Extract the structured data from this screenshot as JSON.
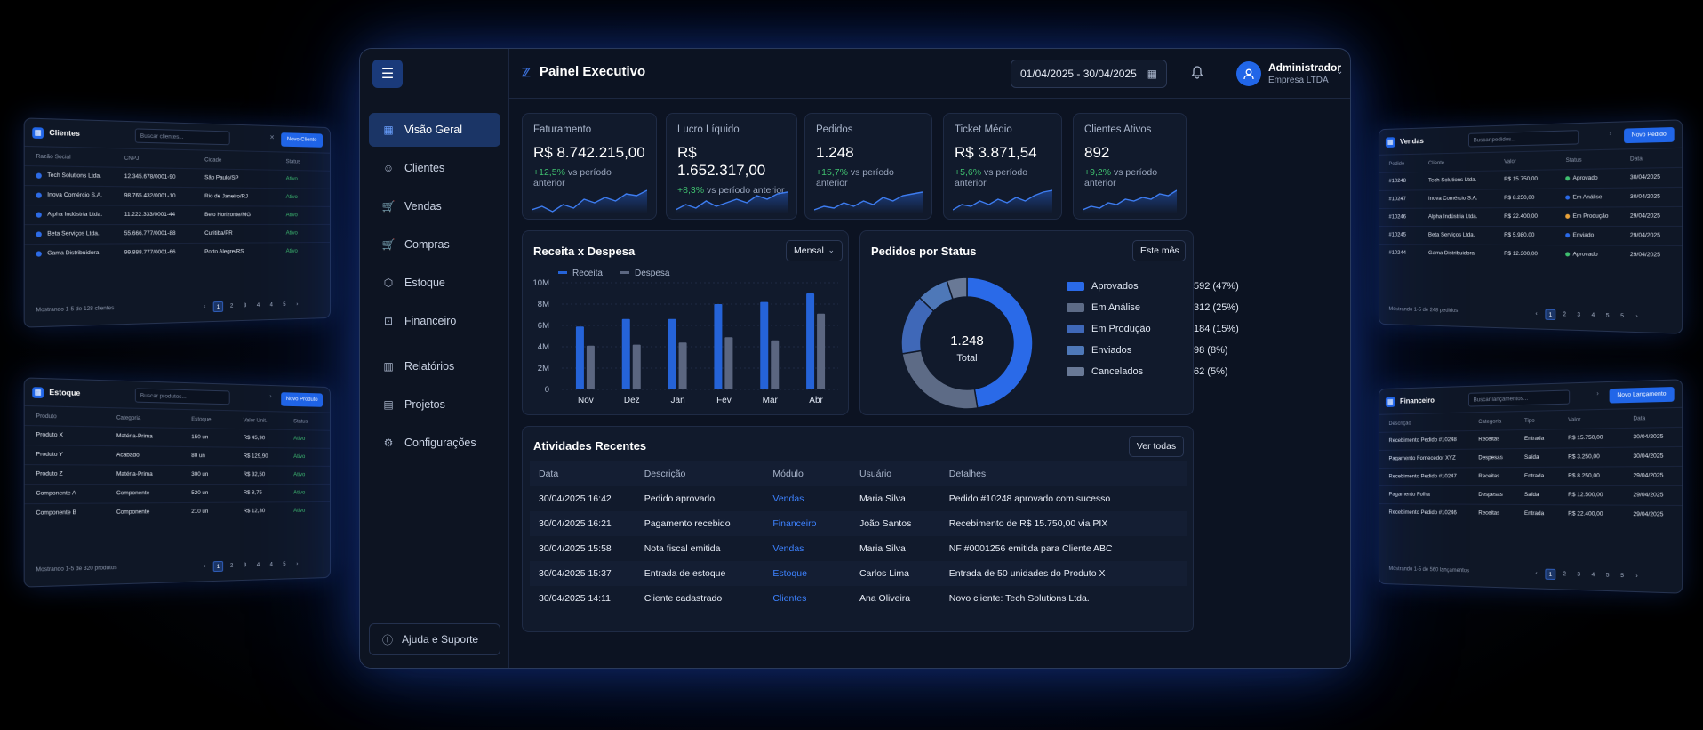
{
  "main": {
    "title": "Painel Executivo",
    "date_range": "01/04/2025 - 30/04/2025",
    "user": {
      "name": "Administrador",
      "company": "Empresa LTDA"
    },
    "nav": [
      "Visão Geral",
      "Clientes",
      "Vendas",
      "Compras",
      "Estoque",
      "Financeiro",
      "Relatórios",
      "Projetos",
      "Configurações"
    ],
    "help": "Ajuda e Suporte",
    "kpis": [
      {
        "label": "Faturamento",
        "value": "R$ 8.742.215,00",
        "change": "+12,5%",
        "suffix": "vs período anterior"
      },
      {
        "label": "Lucro Líquido",
        "value": "R$ 1.652.317,00",
        "change": "+8,3%",
        "suffix": "vs período anterior"
      },
      {
        "label": "Pedidos",
        "value": "1.248",
        "change": "+15,7%",
        "suffix": "vs período anterior"
      },
      {
        "label": "Ticket Médio",
        "value": "R$ 3.871,54",
        "change": "+5,6%",
        "suffix": "vs período anterior"
      },
      {
        "label": "Clientes Ativos",
        "value": "892",
        "change": "+9,2%",
        "suffix": "vs período anterior"
      }
    ],
    "revenue_panel": {
      "title": "Receita x Despesa",
      "filter": "Mensal"
    },
    "status_panel": {
      "title": "Pedidos por Status",
      "filter": "Este mês",
      "center_value": "1.248",
      "center_label": "Total"
    },
    "activities": {
      "title": "Atividades Recentes",
      "button": "Ver todas",
      "columns": [
        "Data",
        "Descrição",
        "Módulo",
        "Usuário",
        "Detalhes"
      ],
      "rows": [
        [
          "30/04/2025 16:42",
          "Pedido aprovado",
          "Vendas",
          "Maria Silva",
          "Pedido #10248 aprovado com sucesso"
        ],
        [
          "30/04/2025 16:21",
          "Pagamento recebido",
          "Financeiro",
          "João Santos",
          "Recebimento de R$ 15.750,00 via PIX"
        ],
        [
          "30/04/2025 15:58",
          "Nota fiscal emitida",
          "Vendas",
          "Maria Silva",
          "NF #0001256 emitida para Cliente ABC"
        ],
        [
          "30/04/2025 15:37",
          "Entrada de estoque",
          "Estoque",
          "Carlos Lima",
          "Entrada de 50 unidades do Produto X"
        ],
        [
          "30/04/2025 14:11",
          "Cliente cadastrado",
          "Clientes",
          "Ana Oliveira",
          "Novo cliente: Tech Solutions Ltda."
        ]
      ]
    }
  },
  "chart_data": [
    {
      "type": "bar",
      "title": "Receita x Despesa",
      "categories": [
        "Nov",
        "Dez",
        "Jan",
        "Fev",
        "Mar",
        "Abr"
      ],
      "series": [
        {
          "name": "Receita",
          "values": [
            5.9,
            6.6,
            6.6,
            8.0,
            8.2,
            9.0
          ],
          "color": "#2563d8"
        },
        {
          "name": "Despesa",
          "values": [
            4.1,
            4.2,
            4.4,
            4.9,
            4.6,
            7.1
          ],
          "color": "#5b6680"
        }
      ],
      "yticks": [
        "0",
        "2M",
        "4M",
        "6M",
        "8M",
        "10M"
      ],
      "ylim": [
        0,
        10
      ]
    },
    {
      "type": "pie",
      "title": "Pedidos por Status",
      "labels": [
        "Aprovados",
        "Em Análise",
        "Em Produção",
        "Enviados",
        "Cancelados"
      ],
      "values": [
        592,
        312,
        184,
        98,
        62
      ],
      "display": [
        "592 (47%)",
        "312 (25%)",
        "184 (15%)",
        "98 (8%)",
        "62 (5%)"
      ],
      "colors": [
        "#2a6ae8",
        "#5d6b86",
        "#3f68b8",
        "#4e78b8",
        "#697996"
      ]
    }
  ],
  "side_clientes": {
    "title": "Clientes",
    "search": "Buscar clientes...",
    "button": "Novo Cliente",
    "columns": [
      "Razão Social",
      "CNPJ",
      "Cidade",
      "Status"
    ],
    "rows": [
      [
        "Tech Solutions Ltda.",
        "12.345.678/0001-90",
        "São Paulo/SP",
        "Ativo"
      ],
      [
        "Inova Comércio S.A.",
        "98.765.432/0001-10",
        "Rio de Janeiro/RJ",
        "Ativo"
      ],
      [
        "Alpha Indústria Ltda.",
        "11.222.333/0001-44",
        "Belo Horizonte/MG",
        "Ativo"
      ],
      [
        "Beta Serviços Ltda.",
        "55.666.777/0001-88",
        "Curitiba/PR",
        "Ativo"
      ],
      [
        "Gama Distribuidora",
        "99.888.777/0001-66",
        "Porto Alegre/RS",
        "Ativo"
      ]
    ],
    "footer": "Mostrando 1-5 de 128 clientes",
    "pages": [
      "1",
      "2",
      "3",
      "4",
      "4",
      "5"
    ]
  },
  "side_estoque": {
    "title": "Estoque",
    "search": "Buscar produtos...",
    "button": "Novo Produto",
    "columns": [
      "Produto",
      "Categoria",
      "Estoque",
      "Valor Unit.",
      "Status"
    ],
    "rows": [
      [
        "Produto X",
        "Matéria-Prima",
        "150 un",
        "R$ 45,90",
        "Ativo"
      ],
      [
        "Produto Y",
        "Acabado",
        "80 un",
        "R$ 129,90",
        "Ativo"
      ],
      [
        "Produto Z",
        "Matéria-Prima",
        "300 un",
        "R$ 32,50",
        "Ativo"
      ],
      [
        "Componente A",
        "Componente",
        "520 un",
        "R$ 8,75",
        "Ativo"
      ],
      [
        "Componente B",
        "Componente",
        "210 un",
        "R$ 12,30",
        "Ativo"
      ]
    ],
    "footer": "Mostrando 1-5 de 320 produtos",
    "pages": [
      "1",
      "2",
      "3",
      "4",
      "4",
      "5"
    ]
  },
  "side_vendas": {
    "title": "Vendas",
    "search": "Buscar pedidos...",
    "button": "Novo Pedido",
    "columns": [
      "Pedido",
      "Cliente",
      "Valor",
      "Status",
      "Data"
    ],
    "rows": [
      [
        "#10248",
        "Tech Solutions Ltda.",
        "R$ 15.750,00",
        "Aprovado",
        "30/04/2025"
      ],
      [
        "#10247",
        "Inova Comércio S.A.",
        "R$ 8.250,00",
        "Em Análise",
        "30/04/2025"
      ],
      [
        "#10246",
        "Alpha Indústria Ltda.",
        "R$ 22.400,00",
        "Em Produção",
        "29/04/2025"
      ],
      [
        "#10245",
        "Beta Serviços Ltda.",
        "R$ 5.980,00",
        "Enviado",
        "29/04/2025"
      ],
      [
        "#10244",
        "Gama Distribuidora",
        "R$ 12.300,00",
        "Aprovado",
        "29/04/2025"
      ]
    ],
    "status_colors": [
      "#3fbf6f",
      "#2a6ae8",
      "#e8a23a",
      "#2a6ae8",
      "#3fbf6f"
    ],
    "footer": "Mostrando 1-5 de 248 pedidos",
    "pages": [
      "1",
      "2",
      "3",
      "4",
      "5",
      "5"
    ]
  },
  "side_financeiro": {
    "title": "Financeiro",
    "search": "Buscar lançamentos...",
    "button": "Novo Lançamento",
    "columns": [
      "Descrição",
      "Categoria",
      "Tipo",
      "Valor",
      "Data"
    ],
    "rows": [
      [
        "Recebimento Pedido #10248",
        "Receitas",
        "Entrada",
        "R$ 15.750,00",
        "30/04/2025"
      ],
      [
        "Pagamento Fornecedor XYZ",
        "Despesas",
        "Saída",
        "R$ 3.250,00",
        "30/04/2025"
      ],
      [
        "Recebimento Pedido #10247",
        "Receitas",
        "Entrada",
        "R$ 8.250,00",
        "29/04/2025"
      ],
      [
        "Pagamento Folha",
        "Despesas",
        "Saída",
        "R$ 12.500,00",
        "29/04/2025"
      ],
      [
        "Recebimento Pedido #10246",
        "Receitas",
        "Entrada",
        "R$ 22.400,00",
        "29/04/2025"
      ]
    ],
    "footer": "Mostrando 1-5 de 560 lançamentos",
    "pages": [
      "1",
      "2",
      "3",
      "4",
      "5",
      "5"
    ]
  }
}
